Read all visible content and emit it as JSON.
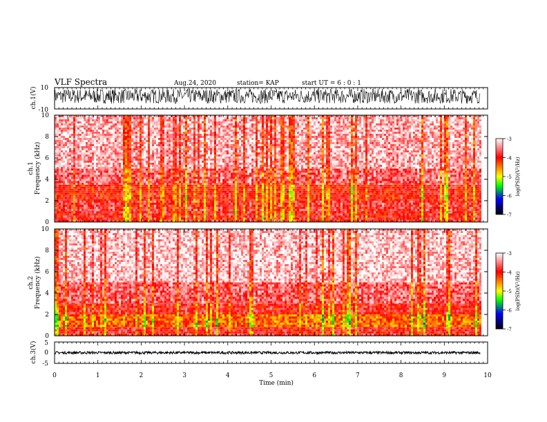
{
  "header": {
    "title": "VLF Spectra",
    "date": "Aug.24, 2020",
    "station": "station= KAP",
    "start": "start  UT =   6 : 0  : 1"
  },
  "colorbar": {
    "label": "log(PSD)(V²/Hz)",
    "ticks": [
      "-3",
      "-4",
      "-5",
      "-6",
      "-7"
    ],
    "stops": [
      "#ffffff",
      "#ff0000",
      "#ffff00",
      "#00ff00",
      "#0000ff",
      "#000000"
    ]
  },
  "chart_data": [
    {
      "type": "line",
      "name": "ch1-waveform",
      "ylabel": "ch.1(V)",
      "ylim": [
        -10,
        10
      ],
      "yticks": [
        "10",
        "-10"
      ],
      "xlim": [
        0,
        10
      ],
      "x_data_end": 9.83,
      "approx_envelope_V": [
        -5,
        9
      ]
    },
    {
      "type": "heatmap",
      "name": "ch1-spectrogram",
      "ylabel": "ch.1\nFrequency (kHz)",
      "ylim": [
        0,
        10
      ],
      "yticks": [
        "0",
        "2",
        "4",
        "6",
        "8",
        "10"
      ],
      "xlim": [
        0,
        10
      ],
      "x_data_end": 9.83,
      "zlim": [
        -7,
        -3
      ],
      "bands": [
        {
          "f": [
            0,
            1
          ],
          "level": -3.9
        },
        {
          "f": [
            1,
            2
          ],
          "level": -3.8
        },
        {
          "f": [
            2,
            3.5
          ],
          "level": -4.0
        },
        {
          "f": [
            3.5,
            5
          ],
          "level": -3.6
        },
        {
          "f": [
            5,
            10
          ],
          "level": -3.3
        }
      ]
    },
    {
      "type": "heatmap",
      "name": "ch2-spectrogram",
      "ylabel": "ch.2\nFrequency (kHz)",
      "ylim": [
        0,
        10
      ],
      "yticks": [
        "0",
        "2",
        "4",
        "6",
        "8",
        "10"
      ],
      "xlim": [
        0,
        10
      ],
      "x_data_end": 9.83,
      "zlim": [
        -7,
        -3
      ],
      "bands": [
        {
          "f": [
            0,
            0.8
          ],
          "level": -3.9
        },
        {
          "f": [
            0.8,
            2
          ],
          "level": -4.4
        },
        {
          "f": [
            2,
            3
          ],
          "level": -3.9
        },
        {
          "f": [
            3,
            5
          ],
          "level": -3.6
        },
        {
          "f": [
            5,
            10
          ],
          "level": -3.2
        }
      ]
    },
    {
      "type": "line",
      "name": "ch3-waveform",
      "ylabel": "ch.3(V)",
      "ylim": [
        -5,
        5
      ],
      "yticks": [
        "5",
        "0",
        "-5"
      ],
      "xlim": [
        0,
        10
      ],
      "x_data_end": 9.83,
      "approx_envelope_V": [
        -0.6,
        0.6
      ]
    }
  ],
  "xaxis": {
    "label": "Time (min)",
    "ticks": [
      "0",
      "1",
      "2",
      "3",
      "4",
      "5",
      "6",
      "7",
      "8",
      "9",
      "10"
    ]
  }
}
